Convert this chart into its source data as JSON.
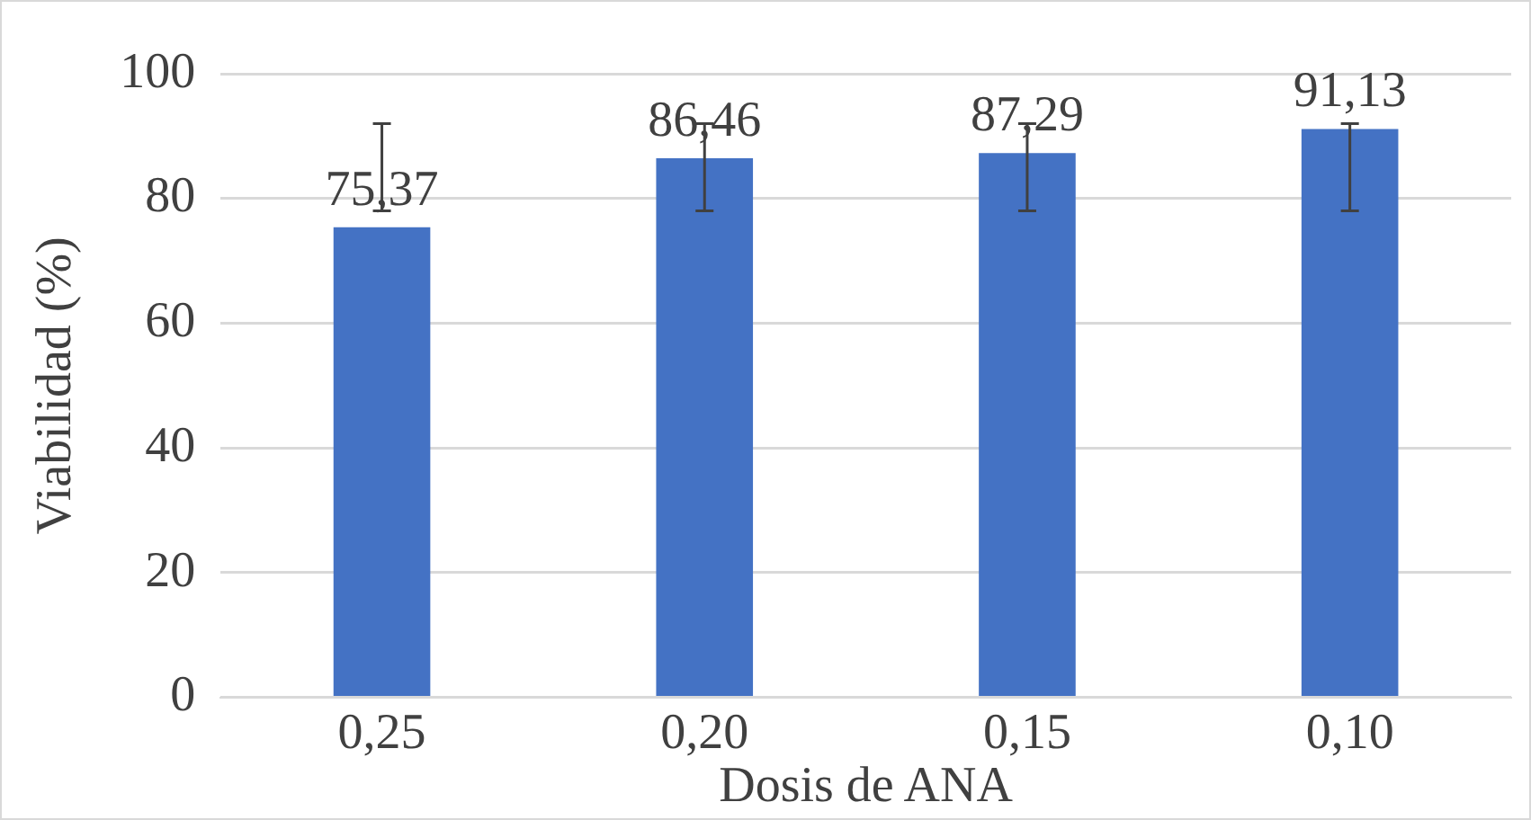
{
  "chart_data": {
    "type": "bar",
    "xlabel": "Dosis de ANA",
    "ylabel": "Viabilidad (%)",
    "categories": [
      "0,25",
      "0,20",
      "0,15",
      "0,10"
    ],
    "values": [
      75.37,
      86.46,
      87.29,
      91.13
    ],
    "value_labels": [
      "75,37",
      "86,46",
      "87,29",
      "91,13"
    ],
    "errors": [
      [
        78,
        92
      ],
      [
        78,
        92
      ],
      [
        78,
        92
      ],
      [
        78,
        92
      ]
    ],
    "color": "#4472c4",
    "ylim": [
      0,
      100
    ],
    "yticks": [
      0,
      20,
      40,
      60,
      80,
      100
    ],
    "grid": "y",
    "legend": false
  }
}
